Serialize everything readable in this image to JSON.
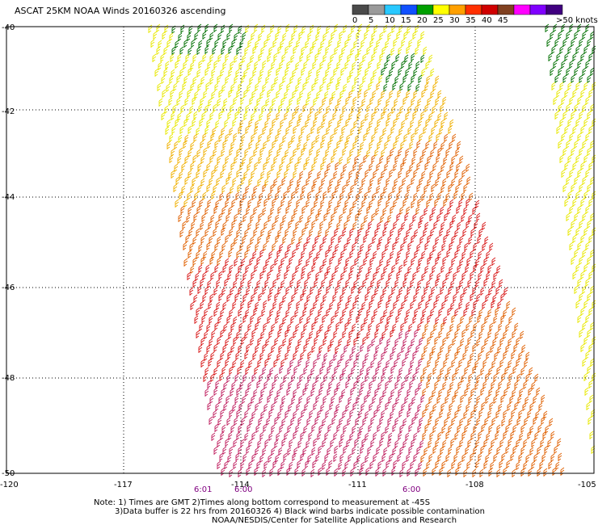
{
  "title": "ASCAT 25KM NOAA Winds 20160326 ascending",
  "legend": {
    "bins": [
      {
        "label": "0",
        "color": "#4a4a4a"
      },
      {
        "label": "5",
        "color": "#9a9a9a"
      },
      {
        "label": "10",
        "color": "#28c8ff"
      },
      {
        "label": "15",
        "color": "#1050ff"
      },
      {
        "label": "20",
        "color": "#00a000"
      },
      {
        "label": "25",
        "color": "#ffff00"
      },
      {
        "label": "30",
        "color": "#ffa000"
      },
      {
        "label": "35",
        "color": "#ff3000"
      },
      {
        "label": "40",
        "color": "#d00000"
      },
      {
        "label": "45",
        "color": "#804020"
      },
      {
        "label": "",
        "color": "#ff00ff"
      },
      {
        "label": "",
        "color": "#8000ff"
      },
      {
        "label": "",
        "color": "#400080"
      }
    ],
    "end_label": ">50 knots"
  },
  "axes": {
    "lat_labels": [
      "-40",
      "-42",
      "-44",
      "-46",
      "-48",
      "-50"
    ],
    "lon_labels": [
      "-120",
      "-117",
      "-114",
      "-111",
      "-108",
      "-105"
    ]
  },
  "times": [
    "6:01",
    "6:00",
    "6:00"
  ],
  "notes": [
    "Note: 1) Times are GMT 2)Times along bottom correspond to measurement at -45S",
    "3)Data buffer is 22 hrs from 20160326 4) Black wind barbs indicate possible contamination",
    "NOAA/NESDIS/Center for Satellite Applications and Research"
  ],
  "colors": {
    "barb_green": "#007000",
    "barb_yellow": "#e8e800",
    "barb_gold": "#f0b000",
    "barb_orange": "#e06000",
    "barb_red": "#d81818",
    "barb_magenta": "#c02060"
  }
}
